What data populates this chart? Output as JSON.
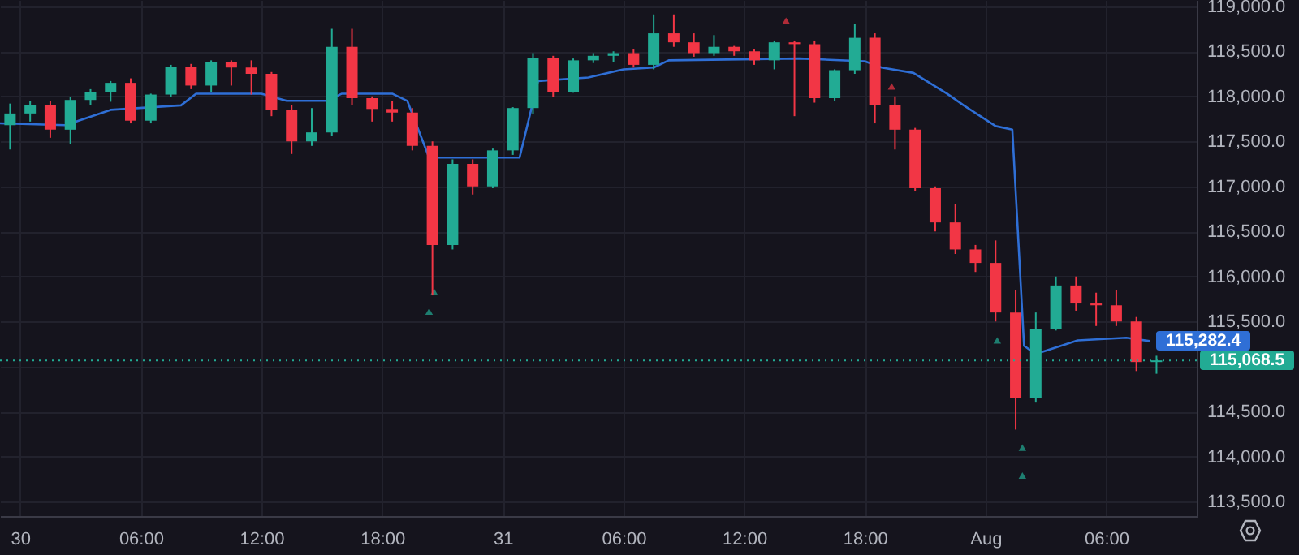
{
  "chart_data": {
    "type": "candlestick",
    "xlim": [
      "--07-29T23:00",
      "--08-01T10:30"
    ],
    "xticks": [
      {
        "value": "--07-30T00:00",
        "label": "30"
      },
      {
        "value": "--07-30T06:00",
        "label": "06:00"
      },
      {
        "value": "--07-30T12:00",
        "label": "12:00"
      },
      {
        "value": "--07-30T18:00",
        "label": "18:00"
      },
      {
        "value": "--07-31T00:00",
        "label": "31"
      },
      {
        "value": "--07-31T06:00",
        "label": "06:00"
      },
      {
        "value": "--07-31T12:00",
        "label": "12:00"
      },
      {
        "value": "--07-31T18:00",
        "label": "18:00"
      },
      {
        "value": "--08-01T00:00",
        "label": "Aug"
      },
      {
        "value": "--08-01T06:00",
        "label": "06:00"
      }
    ],
    "ylim": [
      113340,
      119070
    ],
    "yticks": [
      {
        "value": 113500,
        "label": "113,500.0"
      },
      {
        "value": 114000,
        "label": "114,000.0"
      },
      {
        "value": 114500,
        "label": "114,500.0"
      },
      {
        "value": 115000,
        "label": null
      },
      {
        "value": 115500,
        "label": "115,500.0"
      },
      {
        "value": 116000,
        "label": "116,000.0"
      },
      {
        "value": 116500,
        "label": "116,500.0"
      },
      {
        "value": 117000,
        "label": "117,000.0"
      },
      {
        "value": 117500,
        "label": "117,500.0"
      },
      {
        "value": 118000,
        "label": "118,000.0"
      },
      {
        "value": 118500,
        "label": "118,500.0"
      },
      {
        "value": 119000,
        "label": "119,000.0"
      }
    ],
    "grid": true,
    "series": [
      {
        "type": "line",
        "color": "#2f6fd6",
        "x": [
          "--07-29T23:00",
          "--07-30T02:15",
          "--07-30T04:30",
          "--07-30T08:00",
          "--07-30T08:45",
          "--07-30T12:00",
          "--07-30T13:15",
          "--07-30T15:15",
          "--07-30T16:00",
          "--07-30T18:30",
          "--07-30T19:15",
          "--07-30T20:20",
          "--07-31T00:50",
          "--07-31T01:45",
          "--07-31T04:15",
          "--07-31T06:00",
          "--07-31T07:30",
          "--07-31T08:15",
          "--07-31T14:45",
          "--07-31T18:00",
          "--07-31T18:50",
          "--07-31T20:25",
          "--07-31T22:05",
          "--07-31T22:55",
          "--08-01T00:30",
          "--08-01T01:20",
          "--08-01T01:55",
          "--08-01T02:30",
          "--08-01T04:35",
          "--08-01T07:00",
          "--08-01T08:10"
        ],
        "values": [
          117700,
          117680,
          117850,
          117900,
          118030,
          118030,
          117950,
          117950,
          118030,
          118030,
          117950,
          117320,
          117320,
          118170,
          118210,
          118300,
          118320,
          118400,
          118420,
          118390,
          118320,
          118260,
          118030,
          117900,
          117670,
          117630,
          115230,
          115140,
          115290,
          115320,
          115282.4
        ],
        "value_labels": [
          null,
          null,
          null,
          null,
          null,
          null,
          null,
          null,
          null,
          null,
          null,
          null,
          null,
          null,
          null,
          null,
          null,
          null,
          null,
          null,
          null,
          null,
          null,
          null,
          null,
          null,
          null,
          null,
          null,
          null,
          "115,282.4"
        ]
      },
      {
        "x": [
          "--07-29T23:30",
          "--07-30T00:30",
          "--07-30T01:30",
          "--07-30T02:30",
          "--07-30T03:30",
          "--07-30T04:30",
          "--07-30T05:30",
          "--07-30T06:30",
          "--07-30T07:30",
          "--07-30T08:30",
          "--07-30T09:30",
          "--07-30T10:30",
          "--07-30T11:30",
          "--07-30T12:30",
          "--07-30T13:30",
          "--07-30T14:30",
          "--07-30T15:30",
          "--07-30T16:30",
          "--07-30T17:30",
          "--07-30T18:30",
          "--07-30T19:30",
          "--07-30T20:30",
          "--07-30T21:30",
          "--07-30T22:30",
          "--07-30T23:30",
          "--07-31T00:30",
          "--07-31T01:30",
          "--07-31T02:30",
          "--07-31T03:30",
          "--07-31T04:30",
          "--07-31T05:30",
          "--07-31T06:30",
          "--07-31T07:30",
          "--07-31T08:30",
          "--07-31T09:30",
          "--07-31T10:30",
          "--07-31T11:30",
          "--07-31T12:30",
          "--07-31T13:30",
          "--07-31T14:30",
          "--07-31T15:30",
          "--07-31T16:30",
          "--07-31T17:30",
          "--07-31T18:30",
          "--07-31T19:30",
          "--07-31T20:30",
          "--07-31T21:30",
          "--07-31T22:30",
          "--07-31T23:30",
          "--08-01T00:30",
          "--08-01T01:30",
          "--08-01T02:30",
          "--08-01T03:30",
          "--08-01T04:30",
          "--08-01T05:30",
          "--08-01T06:30",
          "--08-01T07:30",
          "--08-01T08:30"
        ],
        "ohlc": [
          [
            117680,
            117920,
            117410,
            117810
          ],
          [
            117810,
            117950,
            117720,
            117900
          ],
          [
            117900,
            117950,
            117540,
            117630
          ],
          [
            117630,
            117990,
            117470,
            117960
          ],
          [
            117960,
            118080,
            117900,
            118050
          ],
          [
            118050,
            118170,
            117940,
            118150
          ],
          [
            118150,
            118200,
            117700,
            117730
          ],
          [
            117730,
            118030,
            117700,
            118020
          ],
          [
            118020,
            118350,
            117990,
            118330
          ],
          [
            118330,
            118360,
            118080,
            118120
          ],
          [
            118120,
            118400,
            118050,
            118380
          ],
          [
            118380,
            118400,
            118120,
            118320
          ],
          [
            118320,
            118400,
            118020,
            118250
          ],
          [
            118250,
            118270,
            117780,
            117850
          ],
          [
            117850,
            117900,
            117360,
            117500
          ],
          [
            117500,
            117870,
            117450,
            117600
          ],
          [
            117600,
            118750,
            117560,
            118550
          ],
          [
            118550,
            118750,
            117900,
            117980
          ],
          [
            117980,
            118000,
            117720,
            117860
          ],
          [
            117860,
            117950,
            117720,
            117820
          ],
          [
            117820,
            117870,
            117400,
            117450
          ],
          [
            117450,
            117500,
            115790,
            116350
          ],
          [
            116350,
            117300,
            116300,
            117250
          ],
          [
            117250,
            117300,
            116910,
            117000
          ],
          [
            117000,
            117420,
            116980,
            117400
          ],
          [
            117400,
            117880,
            117350,
            117870
          ],
          [
            117870,
            118480,
            117800,
            118430
          ],
          [
            118430,
            118450,
            117990,
            118050
          ],
          [
            118050,
            118420,
            118040,
            118400
          ],
          [
            118400,
            118480,
            118370,
            118450
          ],
          [
            118450,
            118500,
            118380,
            118480
          ],
          [
            118480,
            118520,
            118320,
            118350
          ],
          [
            118350,
            118910,
            118300,
            118700
          ],
          [
            118700,
            118910,
            118550,
            118600
          ],
          [
            118600,
            118700,
            118440,
            118480
          ],
          [
            118480,
            118680,
            118450,
            118550
          ],
          [
            118550,
            118560,
            118450,
            118500
          ],
          [
            118500,
            118520,
            118350,
            118400
          ],
          [
            118400,
            118620,
            118300,
            118600
          ],
          [
            118600,
            118620,
            117780,
            118580
          ],
          [
            118580,
            118620,
            117930,
            117980
          ],
          [
            117980,
            118300,
            117950,
            118290
          ],
          [
            118290,
            118800,
            118250,
            118650
          ],
          [
            118650,
            118700,
            117700,
            117900
          ],
          [
            117900,
            118000,
            117410,
            117630
          ],
          [
            117630,
            117650,
            116950,
            116980
          ],
          [
            116980,
            117000,
            116500,
            116600
          ],
          [
            116600,
            116800,
            116250,
            116300
          ],
          [
            116300,
            116350,
            116050,
            116150
          ],
          [
            116150,
            116400,
            115500,
            115600
          ],
          [
            115600,
            115850,
            114300,
            114650
          ],
          [
            114650,
            115600,
            114600,
            115420
          ],
          [
            115420,
            116000,
            115400,
            115900
          ],
          [
            115900,
            116000,
            115620,
            115700
          ],
          [
            115700,
            115820,
            115450,
            115680
          ],
          [
            115680,
            115850,
            115450,
            115500
          ],
          [
            115500,
            115550,
            114950,
            115050
          ],
          [
            115050,
            115120,
            114920,
            115068.5
          ]
        ],
        "colors": [
          "#22ab94",
          "#22ab94",
          "#f23645",
          "#22ab94",
          "#22ab94",
          "#22ab94",
          "#f23645",
          "#22ab94",
          "#22ab94",
          "#f23645",
          "#22ab94",
          "#f23645",
          "#f23645",
          "#f23645",
          "#f23645",
          "#22ab94",
          "#22ab94",
          "#f23645",
          "#f23645",
          "#f23645",
          "#f23645",
          "#f23645",
          "#22ab94",
          "#f23645",
          "#22ab94",
          "#22ab94",
          "#22ab94",
          "#f23645",
          "#22ab94",
          "#22ab94",
          "#22ab94",
          "#f23645",
          "#22ab94",
          "#f23645",
          "#f23645",
          "#22ab94",
          "#f23645",
          "#f23645",
          "#22ab94",
          "#f23645",
          "#f23645",
          "#22ab94",
          "#22ab94",
          "#f23645",
          "#f23645",
          "#f23645",
          "#f23645",
          "#f23645",
          "#f23645",
          "#f23645",
          "#f23645",
          "#22ab94",
          "#22ab94",
          "#f23645",
          "#f23645",
          "#f23645",
          "#f23645",
          "#22ab94"
        ]
      },
      {
        "type": "scatter",
        "color": "#22ab94",
        "marker": "triangle",
        "x": [
          "--07-30T20:20",
          "--07-30T20:35",
          "--08-01T00:35",
          "--08-01T01:50",
          "--08-01T01:50"
        ],
        "values": [
          115610,
          115830,
          115290,
          114100,
          113790
        ]
      },
      {
        "type": "scatter",
        "color": "#f23645",
        "marker": "triangle",
        "x": [
          "--07-31T14:05",
          "--07-31T19:20"
        ],
        "values": [
          118840,
          118110
        ]
      }
    ],
    "ref_lines": [
      {
        "axis": "y",
        "value": 115068.5,
        "label": "115,068.5",
        "color": "#22ab94",
        "line_style": "dotted"
      }
    ]
  }
}
